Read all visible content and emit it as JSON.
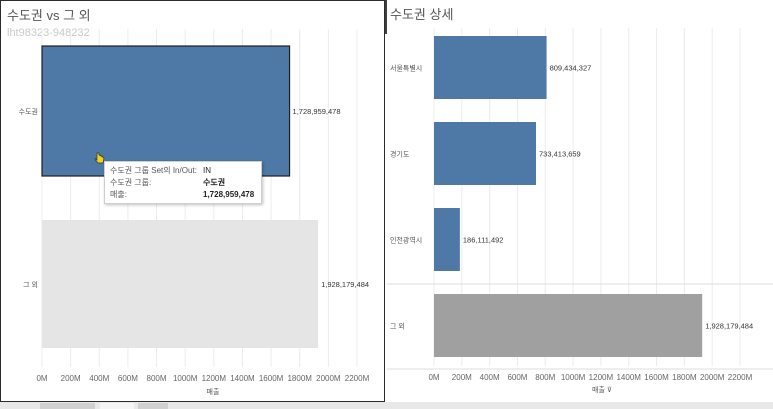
{
  "left": {
    "title": "수도권 vs 그 외",
    "watermark": "lht98323-948232",
    "axis_label": "매출",
    "tooltip": {
      "rows": [
        {
          "key": "수도권 그룹 Set의 In/Out:",
          "value": "IN"
        },
        {
          "key": "수도권 그룹:",
          "value": "수도권"
        },
        {
          "key": "매출:",
          "value": "1,728,959,478"
        }
      ]
    }
  },
  "right": {
    "title": "수도권 상세",
    "axis_label": "매출 ⊽"
  },
  "toolbar": {
    "icons": [
      "close-icon",
      "menu-icon",
      "filter-icon",
      "dropdown-icon"
    ]
  },
  "colors": {
    "blue": "#4e79a7",
    "gray": "#a0a0a0",
    "light_gray": "#e5e5e5",
    "selected_label": "#dcdcdc"
  },
  "chart_data": [
    {
      "type": "bar",
      "orientation": "horizontal",
      "title": "수도권 vs 그 외",
      "xlabel": "매출",
      "ylabel": "",
      "categories": [
        "수도권",
        "그 외"
      ],
      "values": [
        1728959478,
        1928179484
      ],
      "labels": [
        "1,728,959,478",
        "1,928,179,484"
      ],
      "xlim": [
        0,
        2200000000
      ],
      "ticks": [
        "0M",
        "200M",
        "400M",
        "600M",
        "800M",
        "1000M",
        "1200M",
        "1400M",
        "1600M",
        "1800M",
        "2000M",
        "2200M"
      ],
      "grid": true
    },
    {
      "type": "bar",
      "orientation": "horizontal",
      "title": "수도권 상세",
      "xlabel": "매출",
      "ylabel": "",
      "categories": [
        "서울특별시",
        "경기도",
        "인천광역시",
        "그 외"
      ],
      "values": [
        809434327,
        733413659,
        186111492,
        1928179484
      ],
      "labels": [
        "809,434,327",
        "733,413,659",
        "186,111,492",
        "1,928,179,484"
      ],
      "xlim": [
        0,
        2200000000
      ],
      "ticks": [
        "0M",
        "200M",
        "400M",
        "600M",
        "800M",
        "1000M",
        "1200M",
        "1400M",
        "1600M",
        "1800M",
        "2000M",
        "2200M"
      ],
      "grid": true
    }
  ]
}
